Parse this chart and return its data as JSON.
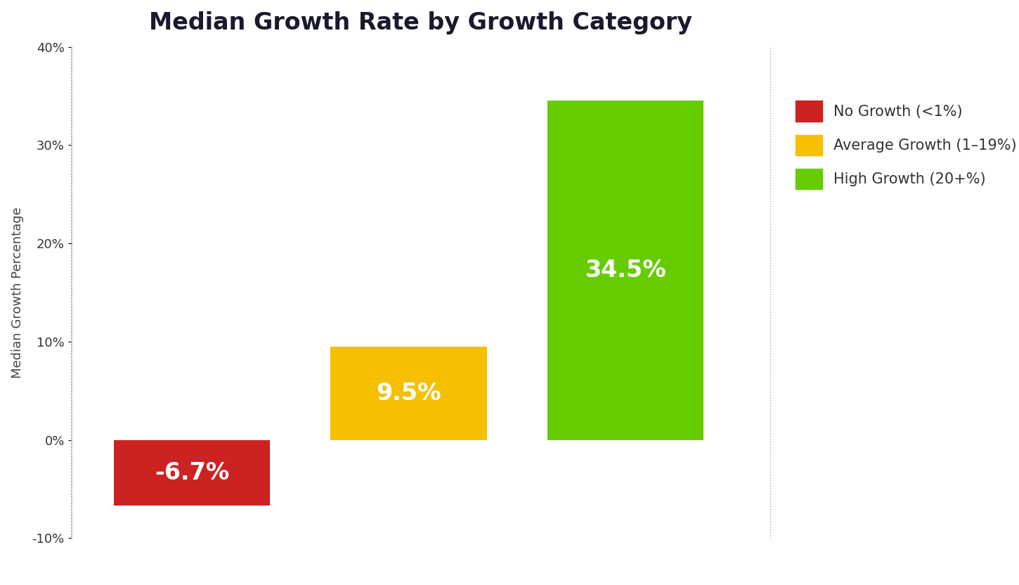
{
  "title": "Median Growth Rate by Growth Category",
  "ylabel": "Median Growth Percentage",
  "categories": [
    "No Growth (<1%)",
    "Average Growth (1–19%)",
    "High Growth (20+%)"
  ],
  "values": [
    -6.7,
    9.5,
    34.5
  ],
  "bar_colors": [
    "#cc2222",
    "#f5c000",
    "#66cc00"
  ],
  "bar_labels": [
    "-6.7%",
    "9.5%",
    "34.5%"
  ],
  "legend_labels": [
    "No Growth (<1%)",
    "Average Growth (1–19%)",
    "High Growth (20+%)"
  ],
  "legend_colors": [
    "#cc2222",
    "#f5c000",
    "#66cc00"
  ],
  "ylim": [
    -10,
    40
  ],
  "yticks": [
    -10,
    0,
    10,
    20,
    30,
    40
  ],
  "ytick_labels": [
    "-10%",
    "0%",
    "10%",
    "20%",
    "30%",
    "40%"
  ],
  "background_color": "#ffffff",
  "title_fontsize": 24,
  "label_fontsize": 13,
  "bar_label_fontsize": 24,
  "legend_fontsize": 15
}
